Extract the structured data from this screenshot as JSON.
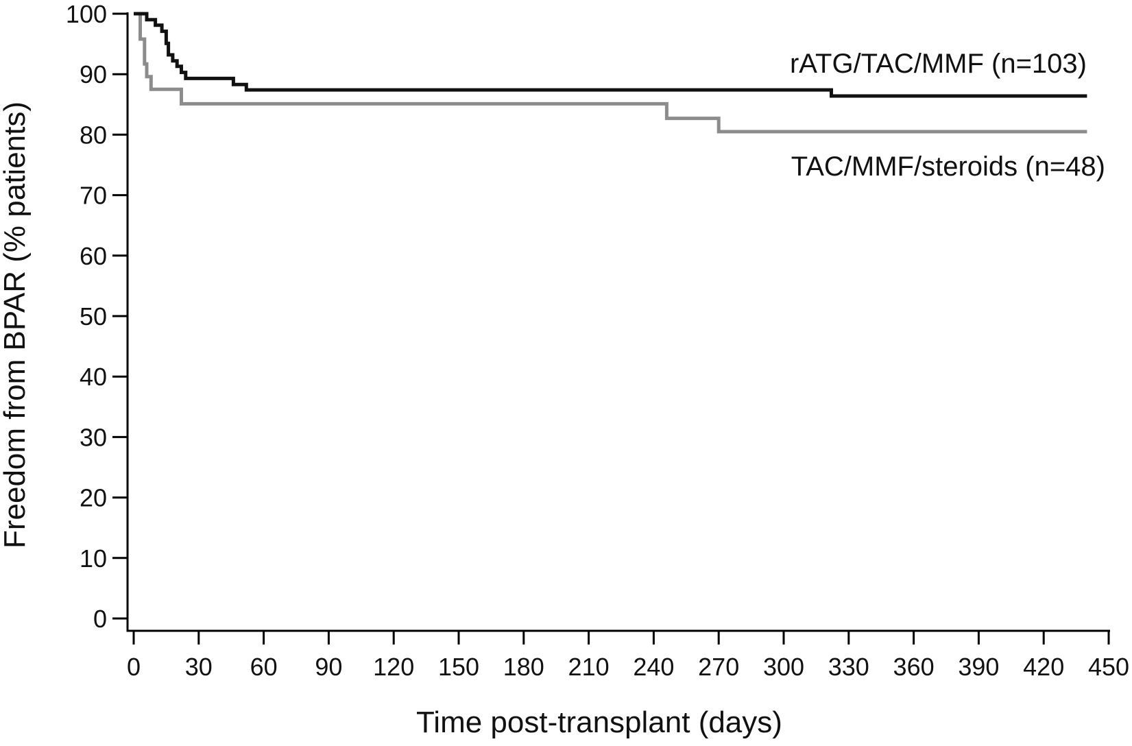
{
  "chart_data": {
    "type": "line",
    "step": true,
    "title": "",
    "xlabel": "Time post-transplant (days)",
    "ylabel": "Freedom from BPAR (% patients)",
    "xlim": [
      0,
      450
    ],
    "ylim": [
      0,
      100
    ],
    "x_ticks": [
      0,
      30,
      60,
      90,
      120,
      150,
      180,
      210,
      240,
      270,
      300,
      330,
      360,
      390,
      420,
      450
    ],
    "y_ticks": [
      0,
      10,
      20,
      30,
      40,
      50,
      60,
      70,
      80,
      90,
      100
    ],
    "grid": false,
    "legend": "inline labels at right end of lines",
    "series": [
      {
        "name": "rATG/TAC/MMF (n=103)",
        "color": "#111111",
        "points": [
          [
            0,
            100
          ],
          [
            6,
            100
          ],
          [
            6,
            99
          ],
          [
            10,
            99
          ],
          [
            10,
            98.1
          ],
          [
            13,
            98.1
          ],
          [
            13,
            97.1
          ],
          [
            15,
            97.1
          ],
          [
            15,
            95.1
          ],
          [
            16,
            95.1
          ],
          [
            16,
            93.2
          ],
          [
            18,
            93.2
          ],
          [
            18,
            92.2
          ],
          [
            20,
            92.2
          ],
          [
            20,
            91.3
          ],
          [
            22,
            91.3
          ],
          [
            22,
            90.3
          ],
          [
            24,
            90.3
          ],
          [
            24,
            89.3
          ],
          [
            46,
            89.3
          ],
          [
            46,
            88.3
          ],
          [
            52,
            88.3
          ],
          [
            52,
            87.4
          ],
          [
            322,
            87.4
          ],
          [
            322,
            86.4
          ],
          [
            440,
            86.4
          ]
        ]
      },
      {
        "name": "TAC/MMF/steroids (n=48)",
        "color": "#8c8c8c",
        "points": [
          [
            0,
            100
          ],
          [
            3,
            100
          ],
          [
            3,
            95.8
          ],
          [
            5,
            95.8
          ],
          [
            5,
            91.7
          ],
          [
            6,
            91.7
          ],
          [
            6,
            89.6
          ],
          [
            8,
            89.6
          ],
          [
            8,
            87.5
          ],
          [
            22,
            87.5
          ],
          [
            22,
            85.1
          ],
          [
            246,
            85.1
          ],
          [
            246,
            82.7
          ],
          [
            270,
            82.7
          ],
          [
            270,
            80.5
          ],
          [
            440,
            80.5
          ]
        ]
      }
    ]
  }
}
